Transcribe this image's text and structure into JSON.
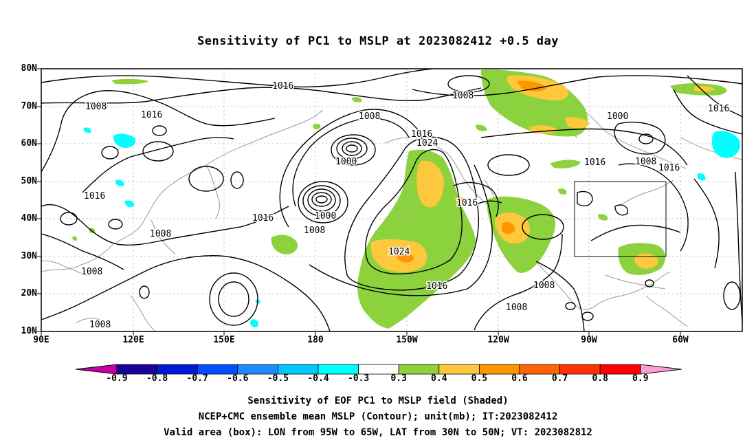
{
  "title": "Sensitivity of PC1 to MSLP at 2023082412 +0.5 day",
  "lat_labels": [
    "80N",
    "70N",
    "60N",
    "50N",
    "40N",
    "30N",
    "20N",
    "10N"
  ],
  "lon_labels": [
    "90E",
    "120E",
    "150E",
    "180",
    "150W",
    "120W",
    "90W",
    "60W"
  ],
  "contour_labels": [
    "1016",
    "1008",
    "1016",
    "1008",
    "1016",
    "1016",
    "1008",
    "1008",
    "1016",
    "1016",
    "1008",
    "1024",
    "1000",
    "1000",
    "1008",
    "1016",
    "1024",
    "1016",
    "1016",
    "1008",
    "1008",
    "1000",
    "1008",
    "1016",
    "1016",
    "1008"
  ],
  "colorbar": {
    "labels": [
      "-0.9",
      "-0.8",
      "-0.7",
      "-0.6",
      "-0.5",
      "-0.4",
      "-0.3",
      "0.3",
      "0.4",
      "0.5",
      "0.6",
      "0.7",
      "0.8",
      "0.9"
    ],
    "colors": [
      "#c9009f",
      "#1a0096",
      "#0019d6",
      "#0050ff",
      "#1a8cff",
      "#00c8ff",
      "#00ffff",
      "#ffffff",
      "#8cd23c",
      "#ffc83c",
      "#ff9600",
      "#ff6400",
      "#ff3200",
      "#ff0000",
      "#ff9ed2"
    ]
  },
  "shading_colors": {
    "pos_03": "#8cd23c",
    "pos_04": "#ffc83c",
    "pos_05": "#ff9600",
    "neg_04": "#00ffff"
  },
  "valid_box": {
    "lon_range": [
      "95W",
      "65W"
    ],
    "lat_range": [
      "30N",
      "50N"
    ]
  },
  "footer": [
    "Sensitivity of EOF PC1 to MSLP field (Shaded)",
    "NCEP+CMC ensemble mean MSLP (Contour); unit(mb); IT:2023082412",
    "Valid area (box): LON from 95W to 65W, LAT from 30N to 50N; VT: 2023082812"
  ]
}
